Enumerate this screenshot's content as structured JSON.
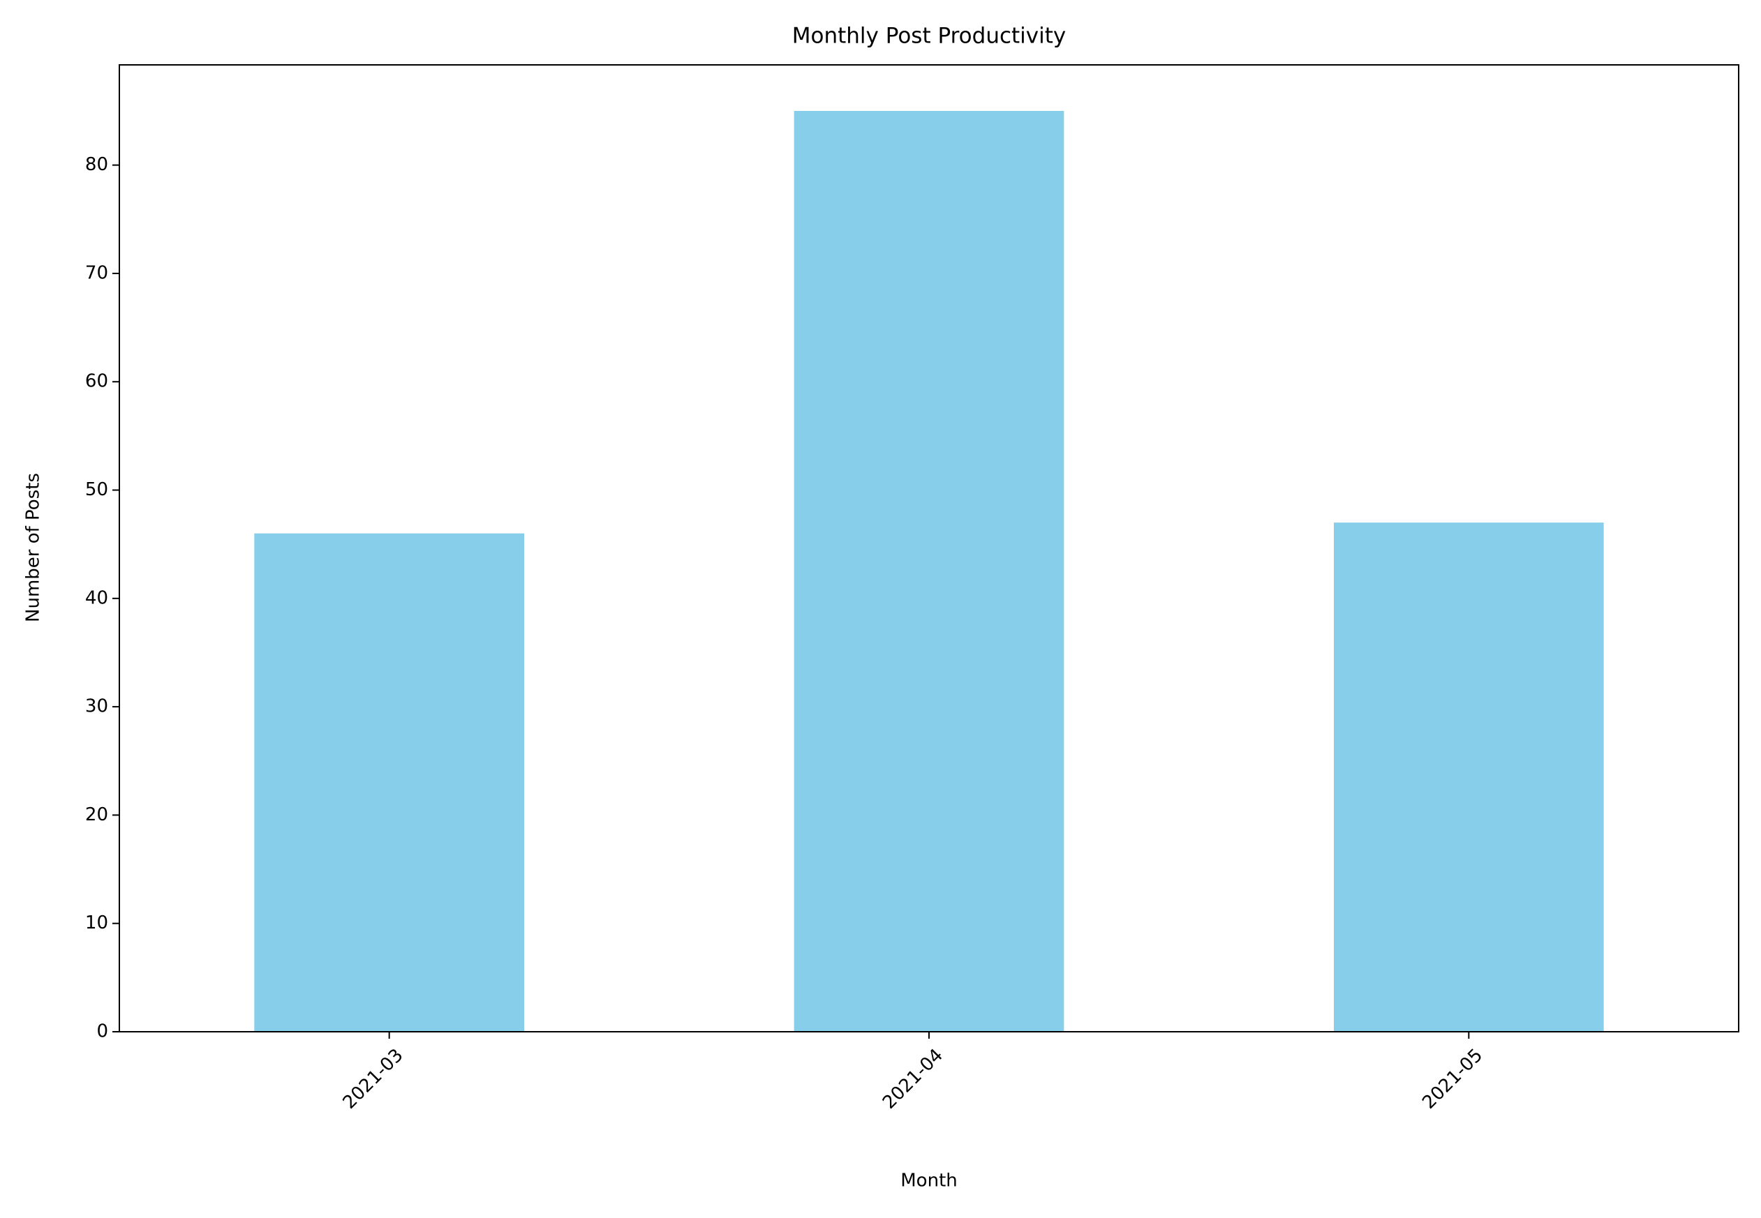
{
  "chart_data": {
    "type": "bar",
    "title": "Monthly Post Productivity",
    "x_label": "Month",
    "y_label": "Number of Posts",
    "categories": [
      "2021-03",
      "2021-04",
      "2021-05"
    ],
    "values": [
      46,
      85,
      47
    ],
    "color": "#87ceeb",
    "ylim": [
      0,
      89.25
    ],
    "yticks": [
      0,
      10,
      20,
      30,
      40,
      50,
      60,
      70,
      80
    ],
    "grid": false
  }
}
